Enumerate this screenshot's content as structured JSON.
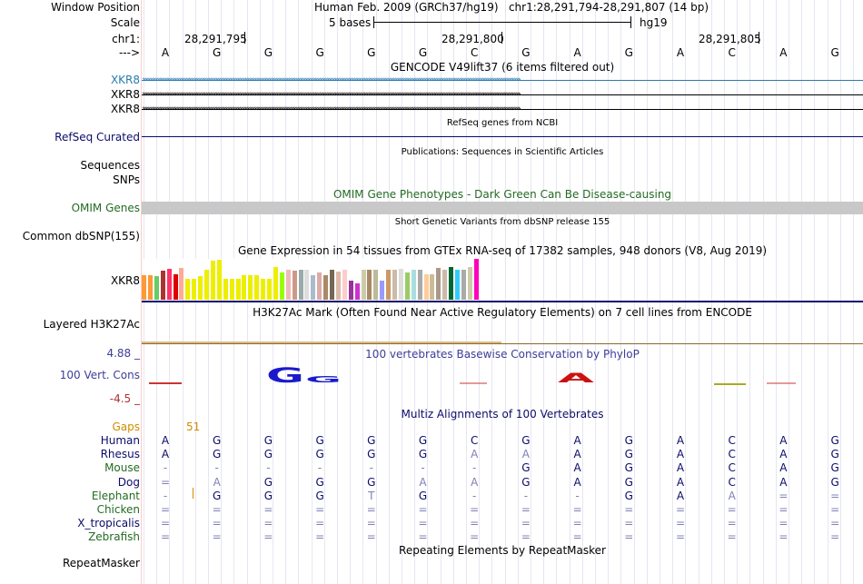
{
  "header": {
    "window_position_label": "Window Position",
    "window_position_value": "Human Feb. 2009 (GRCh37/hg19)   chr1:28,291,794-28,291,807 (14 bp)",
    "scale_label": "Scale",
    "scale_text": "5 bases",
    "assembly": "hg19",
    "chrom_label": "chr1:",
    "coords": [
      "28,291,795",
      "28,291,800",
      "28,291,805"
    ],
    "arrow_label": "--->",
    "bases": [
      "A",
      "G",
      "G",
      "G",
      "G",
      "G",
      "C",
      "G",
      "A",
      "G",
      "A",
      "C",
      "A",
      "G"
    ]
  },
  "gencode": {
    "title": "GENCODE V49lift37 (6 items filtered out)",
    "items": [
      "XKR8",
      "XKR8",
      "XKR8"
    ],
    "colors": [
      "#2b7bb0",
      "#000000",
      "#000000"
    ]
  },
  "refseq": {
    "title": "RefSeq genes from NCBI",
    "label": "RefSeq Curated"
  },
  "publications": {
    "title": "Publications: Sequences in Scientific Articles",
    "label1": "Sequences",
    "label2": "SNPs"
  },
  "omim": {
    "title": "OMIM Gene Phenotypes - Dark Green Can Be Disease-causing",
    "label": "OMIM Genes"
  },
  "dbsnp": {
    "title": "Short Genetic Variants from dbSNP release 155",
    "label": "Common dbSNP(155)"
  },
  "gtex": {
    "title": "Gene Expression in 54 tissues from GTEx RNA-seq of 17382 samples, 948 donors (V8, Aug 2019)",
    "label": "XKR8",
    "bars": [
      {
        "v": 0.6,
        "c": "#ff9933"
      },
      {
        "v": 0.6,
        "c": "#ff9933"
      },
      {
        "v": 0.58,
        "c": "#66cc66"
      },
      {
        "v": 0.72,
        "c": "#aa3333"
      },
      {
        "v": 0.75,
        "c": "#ff3366"
      },
      {
        "v": 0.63,
        "c": "#dd0000"
      },
      {
        "v": 0.77,
        "c": "#ffaa99"
      },
      {
        "v": 0.52,
        "c": "#eeee00"
      },
      {
        "v": 0.52,
        "c": "#eeee00"
      },
      {
        "v": 0.57,
        "c": "#eeee00"
      },
      {
        "v": 0.73,
        "c": "#eeee00"
      },
      {
        "v": 0.95,
        "c": "#eeee00"
      },
      {
        "v": 0.97,
        "c": "#eeee00"
      },
      {
        "v": 0.52,
        "c": "#eeee00"
      },
      {
        "v": 0.52,
        "c": "#eeee00"
      },
      {
        "v": 0.52,
        "c": "#eeee00"
      },
      {
        "v": 0.6,
        "c": "#eeee00"
      },
      {
        "v": 0.6,
        "c": "#eeee00"
      },
      {
        "v": 0.6,
        "c": "#eeee00"
      },
      {
        "v": 0.52,
        "c": "#eeee00"
      },
      {
        "v": 0.52,
        "c": "#eeee00"
      },
      {
        "v": 0.8,
        "c": "#eeee00"
      },
      {
        "v": 0.66,
        "c": "#99ff00"
      },
      {
        "v": 0.73,
        "c": "#eebbbb"
      },
      {
        "v": 0.72,
        "c": "#cc9988"
      },
      {
        "v": 0.73,
        "c": "#99aaaa"
      },
      {
        "v": 0.73,
        "c": "#dddddd"
      },
      {
        "v": 0.6,
        "c": "#aabbcc"
      },
      {
        "v": 0.66,
        "c": "#ddaaaa"
      },
      {
        "v": 0.6,
        "c": "#aa8866"
      },
      {
        "v": 0.73,
        "c": "#776655"
      },
      {
        "v": 0.7,
        "c": "#ddbbaa"
      },
      {
        "v": 0.73,
        "c": "#ffcccc"
      },
      {
        "v": 0.46,
        "c": "#993399"
      },
      {
        "v": 0.4,
        "c": "#cc33cc"
      },
      {
        "v": 0.73,
        "c": "#ccccaa"
      },
      {
        "v": 0.73,
        "c": "#aa8866"
      },
      {
        "v": 0.73,
        "c": "#bbbb99"
      },
      {
        "v": 0.46,
        "c": "#9999ff"
      },
      {
        "v": 0.73,
        "c": "#cc9966"
      },
      {
        "v": 0.73,
        "c": "#ccbbaa"
      },
      {
        "v": 0.75,
        "c": "#dddddd"
      },
      {
        "v": 0.66,
        "c": "#99cc66"
      },
      {
        "v": 0.73,
        "c": "#aadddd"
      },
      {
        "v": 0.73,
        "c": "#aaaaaa"
      },
      {
        "v": 0.63,
        "c": "#ffcc99"
      },
      {
        "v": 0.63,
        "c": "#ccbb99"
      },
      {
        "v": 0.77,
        "c": "#aa9988"
      },
      {
        "v": 0.73,
        "c": "#ccbbaa"
      },
      {
        "v": 0.8,
        "c": "#006633"
      },
      {
        "v": 0.73,
        "c": "#33ccff"
      },
      {
        "v": 0.73,
        "c": "#aaaaaa"
      },
      {
        "v": 0.8,
        "c": "#ccccaa"
      },
      {
        "v": 1.0,
        "c": "#ff00bb"
      }
    ]
  },
  "h3k27ac": {
    "title": "H3K27Ac Mark (Often Found Near Active Regulatory Elements) on 7 cell lines from ENCODE",
    "label": "Layered H3K27Ac"
  },
  "conservation": {
    "title": "100 vertebrates Basewise Conservation by PhyloP",
    "label": "100 Vert. Cons",
    "max_label": "4.88 _",
    "min_label": "-4.5 _"
  },
  "multiz": {
    "title": "Multiz Alignments of 100 Vertebrates",
    "gaps_label": "Gaps",
    "gap_count": "51",
    "rows": [
      {
        "species": "Human",
        "color": "#0b0b6b",
        "bases": [
          "A",
          "G",
          "G",
          "G",
          "G",
          "G",
          "C",
          "G",
          "A",
          "G",
          "A",
          "C",
          "A",
          "G"
        ]
      },
      {
        "species": "Rhesus",
        "color": "#0b0b6b",
        "bases": [
          "A",
          "G",
          "G",
          "G",
          "G",
          "G",
          "A",
          "A",
          "A",
          "G",
          "A",
          "C",
          "A",
          "G"
        ]
      },
      {
        "species": "Mouse",
        "color": "#236b23",
        "bases": [
          "-",
          "-",
          "-",
          "-",
          "-",
          "-",
          "-",
          "G",
          "A",
          "G",
          "A",
          "C",
          "A",
          "G"
        ]
      },
      {
        "species": "Dog",
        "color": "#0b0b6b",
        "bases": [
          "=",
          "A",
          "G",
          "G",
          "G",
          "A",
          "A",
          "G",
          "A",
          "G",
          "A",
          "C",
          "A",
          "G"
        ]
      },
      {
        "species": "Elephant",
        "color": "#236b23",
        "bases": [
          "-",
          "G",
          "G",
          "G",
          "T",
          "G",
          "-",
          "-",
          "-",
          "G",
          "A",
          "A",
          "=",
          "="
        ]
      },
      {
        "species": "Chicken",
        "color": "#236b23",
        "bases": [
          "=",
          "=",
          "=",
          "=",
          "=",
          "=",
          "=",
          "=",
          "=",
          "=",
          "=",
          "=",
          "=",
          "="
        ]
      },
      {
        "species": "X_tropicalis",
        "color": "#0b0b6b",
        "bases": [
          "=",
          "=",
          "=",
          "=",
          "=",
          "=",
          "=",
          "=",
          "=",
          "=",
          "=",
          "=",
          "=",
          "="
        ]
      },
      {
        "species": "Zebrafish",
        "color": "#236b23",
        "bases": [
          "=",
          "=",
          "=",
          "=",
          "=",
          "=",
          "=",
          "=",
          "=",
          "=",
          "=",
          "=",
          "=",
          "="
        ]
      }
    ]
  },
  "repeatmasker": {
    "title": "Repeating Elements by RepeatMasker",
    "label": "RepeatMasker"
  }
}
